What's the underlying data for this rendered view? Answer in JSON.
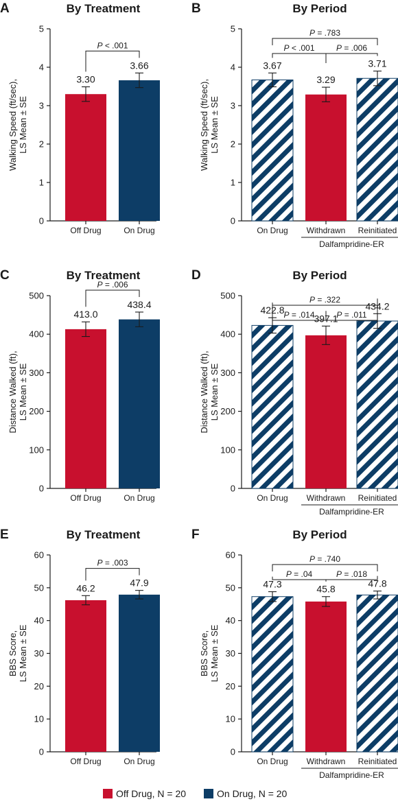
{
  "colors": {
    "off": "#c8102e",
    "on": "#0d3d66",
    "axis": "#1a1a1a"
  },
  "legend": [
    {
      "key": "off",
      "label": "Off Drug, N = 20"
    },
    {
      "key": "on",
      "label": "On Drug, N = 20"
    }
  ],
  "chart_data": [
    {
      "letter": "A",
      "title": "By Treatment",
      "type": "bar",
      "ylabel": [
        "Walking Speed (ft/sec),",
        "LS Mean ± SE"
      ],
      "ylim": [
        0,
        5
      ],
      "yticks": [
        0,
        1,
        2,
        3,
        4,
        5
      ],
      "categories": [
        "Off Drug",
        "On Drug"
      ],
      "values": [
        3.3,
        3.66
      ],
      "errors": [
        0.19,
        0.19
      ],
      "value_labels": [
        "3.30",
        "3.66"
      ],
      "styles": [
        "off",
        "on"
      ],
      "comparisons": [
        {
          "from": 0,
          "to": 1,
          "label": "P < .001"
        }
      ]
    },
    {
      "letter": "B",
      "title": "By Period",
      "type": "bar",
      "ylabel": [
        "Walking Speed (ft/sec),",
        "LS Mean ± SE"
      ],
      "ylim": [
        0,
        5
      ],
      "yticks": [
        0,
        1,
        2,
        3,
        4,
        5
      ],
      "categories": [
        "On Drug",
        "Withdrawn",
        "Reinitiated"
      ],
      "values": [
        3.67,
        3.29,
        3.71
      ],
      "errors": [
        0.18,
        0.19,
        0.19
      ],
      "value_labels": [
        "3.67",
        "3.29",
        "3.71"
      ],
      "styles": [
        "on-hatch",
        "off",
        "on-hatch"
      ],
      "group_label": {
        "text": "Dalfampridine-ER",
        "from": 1,
        "to": 2
      },
      "comparisons": [
        {
          "from": 0,
          "to": 2,
          "label": "P = .783"
        },
        {
          "from": 0,
          "to": 1,
          "label": "P < .001"
        },
        {
          "from": 1,
          "to": 2,
          "label": "P = .006"
        }
      ]
    },
    {
      "letter": "C",
      "title": "By Treatment",
      "type": "bar",
      "ylabel": [
        "Distance Walked (ft),",
        "LS Mean ± SE"
      ],
      "ylim": [
        0,
        500
      ],
      "yticks": [
        0,
        100,
        200,
        300,
        400,
        500
      ],
      "categories": [
        "Off Drug",
        "On Drug"
      ],
      "values": [
        413.0,
        438.4
      ],
      "errors": [
        19,
        19
      ],
      "value_labels": [
        "413.0",
        "438.4"
      ],
      "styles": [
        "off",
        "on"
      ],
      "comparisons": [
        {
          "from": 0,
          "to": 1,
          "label": "P = .006"
        }
      ]
    },
    {
      "letter": "D",
      "title": "By Period",
      "type": "bar",
      "ylabel": [
        "Distance Walked (ft),",
        "LS Mean ± SE"
      ],
      "ylim": [
        0,
        500
      ],
      "yticks": [
        0,
        100,
        200,
        300,
        400,
        500
      ],
      "categories": [
        "On Drug",
        "Withdrawn",
        "Reinitiated"
      ],
      "values": [
        422.8,
        397.1,
        434.2
      ],
      "errors": [
        20,
        24,
        19
      ],
      "value_labels": [
        "422.8",
        "397.1",
        "434.2"
      ],
      "styles": [
        "on-hatch",
        "off",
        "on-hatch"
      ],
      "group_label": {
        "text": "Dalfampridine-ER",
        "from": 1,
        "to": 2
      },
      "comparisons": [
        {
          "from": 0,
          "to": 2,
          "label": "P = .322"
        },
        {
          "from": 0,
          "to": 1,
          "label": "P = .014"
        },
        {
          "from": 1,
          "to": 2,
          "label": "P = .011"
        }
      ]
    },
    {
      "letter": "E",
      "title": "By Treatment",
      "type": "bar",
      "ylabel": [
        "BBS Score,",
        "LS Mean ± SE"
      ],
      "ylim": [
        0,
        60
      ],
      "yticks": [
        0,
        10,
        20,
        30,
        40,
        50,
        60
      ],
      "categories": [
        "Off Drug",
        "On Drug"
      ],
      "values": [
        46.2,
        47.9
      ],
      "errors": [
        1.4,
        1.3
      ],
      "value_labels": [
        "46.2",
        "47.9"
      ],
      "styles": [
        "off",
        "on"
      ],
      "comparisons": [
        {
          "from": 0,
          "to": 1,
          "label": "P = .003"
        }
      ]
    },
    {
      "letter": "F",
      "title": "By Period",
      "type": "bar",
      "ylabel": [
        "BBS Score,",
        "LS Mean ± SE"
      ],
      "ylim": [
        0,
        60
      ],
      "yticks": [
        0,
        10,
        20,
        30,
        40,
        50,
        60
      ],
      "categories": [
        "On Drug",
        "Withdrawn",
        "Reinitiated"
      ],
      "values": [
        47.3,
        45.8,
        47.8
      ],
      "errors": [
        1.5,
        1.5,
        1.2
      ],
      "value_labels": [
        "47.3",
        "45.8",
        "47.8"
      ],
      "styles": [
        "on-hatch",
        "off",
        "on-hatch"
      ],
      "group_label": {
        "text": "Dalfampridine-ER",
        "from": 1,
        "to": 2
      },
      "comparisons": [
        {
          "from": 0,
          "to": 2,
          "label": "P = .740"
        },
        {
          "from": 0,
          "to": 1,
          "label": "P = .04"
        },
        {
          "from": 1,
          "to": 2,
          "label": "P = .018"
        }
      ]
    }
  ]
}
